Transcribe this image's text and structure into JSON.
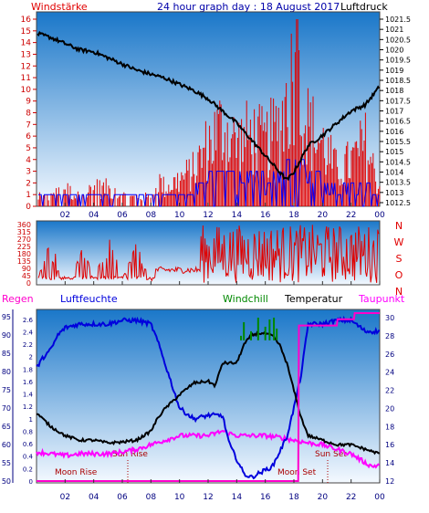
{
  "header": {
    "left": "Windstärke",
    "center": "24 hour graph day : 18 August 2017",
    "right": "Luftdruck"
  },
  "colors": {
    "wind": "#e00000",
    "pressure": "#000000",
    "windAvg": "#0000ff",
    "humidity": "#0000dd",
    "windchill": "#008800",
    "temperature": "#000000",
    "dewpoint": "#ff00ff",
    "rain": "#ff00cc",
    "axisLeft": "#0000aa",
    "axisRight": "#000080",
    "bgTop": "#1a77c9",
    "bgBottom": "#f4f9ff"
  },
  "time_ticks": [
    "02",
    "04",
    "06",
    "08",
    "10",
    "12",
    "14",
    "16",
    "18",
    "20",
    "22",
    "00"
  ],
  "top_panel": {
    "left_ticks": [
      "16",
      "15",
      "14",
      "13",
      "12",
      "11",
      "10",
      "9",
      "8",
      "7",
      "6",
      "5",
      "4",
      "3",
      "2",
      "1",
      "0"
    ],
    "right_ticks": [
      "1021.5",
      "1021",
      "1020.5",
      "1020",
      "1019.5",
      "1019",
      "1018.5",
      "1018",
      "1017.5",
      "1017",
      "1016.5",
      "1016",
      "1015.5",
      "1015",
      "1014.5",
      "1014",
      "1013.5",
      "1013",
      "1012.5"
    ]
  },
  "dir_panel": {
    "left_ticks": [
      "360",
      "315",
      "270",
      "225",
      "180",
      "135",
      "90",
      "45",
      "0"
    ],
    "right_labels": [
      "N",
      "W",
      "S",
      "O",
      "N"
    ]
  },
  "bottom_panel": {
    "labels": {
      "rain": "Regen",
      "humidity": "Luftfeuchte",
      "windchill": "Windchill",
      "temperature": "Temperatur",
      "dewpoint": "Taupunkt"
    },
    "rain_ticks": [
      "2.6",
      "2.4",
      "2.2",
      "2",
      "1.8",
      "1.6",
      "1.4",
      "1.2",
      "1",
      "0.8",
      "0.6",
      "0.4",
      "0.2",
      "0"
    ],
    "humidity_ticks": [
      "95",
      "90",
      "85",
      "80",
      "75",
      "70",
      "65",
      "60",
      "55",
      "50"
    ],
    "temp_ticks": [
      "30",
      "28",
      "26",
      "24",
      "22",
      "20",
      "18",
      "16",
      "14",
      "12"
    ],
    "annotations": {
      "sun_rise": "Sun Rise",
      "sun_set": "Sun Set",
      "moon_rise": "Moon Rise",
      "moon_set": "Moon Set"
    }
  },
  "chart_data": [
    {
      "type": "line",
      "title": "24 hour graph day : 18 August 2017",
      "x_unit": "hour",
      "xlim": [
        0,
        24
      ],
      "series": [
        {
          "name": "Luftdruck",
          "axis": "right",
          "ylim": [
            1012.5,
            1021.5
          ],
          "x": [
            0,
            1,
            2,
            3,
            4,
            5,
            6,
            7,
            8,
            9,
            10,
            11,
            12,
            13,
            14,
            15,
            16,
            17,
            17.5,
            18,
            19,
            20,
            21,
            22,
            23,
            24
          ],
          "y": [
            1020.8,
            1020.6,
            1020.3,
            1020.0,
            1019.9,
            1019.6,
            1019.3,
            1019.0,
            1018.8,
            1018.6,
            1018.3,
            1018.0,
            1017.6,
            1017.0,
            1016.4,
            1015.6,
            1014.8,
            1014.0,
            1013.6,
            1014.0,
            1015.3,
            1015.8,
            1016.4,
            1017.0,
            1017.3,
            1018.2
          ]
        },
        {
          "name": "Windstärke",
          "axis": "left",
          "ylim": [
            0,
            16
          ],
          "x": [
            0,
            1,
            2,
            3,
            4,
            5,
            6,
            7,
            8,
            8.5,
            9,
            10,
            11,
            12,
            13,
            14,
            15,
            16,
            17,
            18,
            19,
            20,
            21,
            22,
            23,
            24
          ],
          "y": [
            1,
            1,
            2,
            1,
            2,
            2,
            1,
            1,
            1,
            3,
            2,
            3,
            4,
            7,
            9,
            7,
            8,
            7,
            9,
            15,
            9,
            7,
            4,
            5,
            7,
            2
          ]
        }
      ]
    },
    {
      "type": "line",
      "title": "",
      "y_unit": "degrees",
      "ylim": [
        0,
        360
      ],
      "series": [
        {
          "name": "",
          "x": [
            0,
            1,
            2,
            3,
            4,
            5,
            6,
            7,
            8,
            9,
            10,
            11,
            12,
            13,
            14,
            15,
            16,
            17,
            18,
            19,
            20,
            21,
            22,
            23,
            24
          ],
          "y": [
            20,
            200,
            20,
            180,
            40,
            250,
            20,
            200,
            20,
            40,
            60,
            90,
            210,
            340,
            200,
            280,
            160,
            300,
            80,
            280,
            120,
            260,
            40,
            320,
            100
          ]
        }
      ]
    },
    {
      "type": "line",
      "title": "",
      "series": [
        {
          "name": "Luftfeuchte",
          "axis": "humidity",
          "ylim": [
            50,
            96
          ],
          "x": [
            0,
            0.5,
            1,
            1.5,
            2,
            3,
            4,
            5,
            6,
            7,
            8,
            8.5,
            9,
            10,
            11,
            12,
            13,
            13.5,
            14,
            14.5,
            15,
            15.5,
            16,
            16.5,
            17,
            17.5,
            18,
            18.5,
            19,
            20,
            21,
            22,
            23,
            24
          ],
          "y": [
            81,
            84,
            86,
            90,
            92,
            93,
            93,
            93,
            94,
            94,
            93,
            88,
            82,
            70,
            67,
            68,
            68,
            60,
            56,
            52,
            51,
            52,
            53,
            54,
            58,
            62,
            70,
            79,
            93,
            93,
            94,
            94,
            91,
            91
          ]
        },
        {
          "name": "Windchill",
          "axis": "temp",
          "ylim": [
            12,
            30.5
          ],
          "x": [
            14.3,
            14.5,
            15,
            15.5,
            16,
            16.3,
            16.6,
            16.8
          ],
          "y": [
            28,
            29.5,
            28.5,
            30,
            29,
            29.8,
            30,
            28.8
          ]
        },
        {
          "name": "Temperatur",
          "axis": "temp",
          "ylim": [
            12,
            30.5
          ],
          "x": [
            0,
            1,
            2,
            3,
            4,
            5,
            6,
            7,
            8,
            8.5,
            9,
            10,
            11,
            12,
            12.5,
            13,
            14,
            14.5,
            15,
            15.5,
            16,
            16.5,
            17,
            17.5,
            18,
            18.5,
            19,
            20,
            21,
            22,
            23,
            24
          ],
          "y": [
            19.5,
            18,
            17,
            16.5,
            16.5,
            16.2,
            16.3,
            16.5,
            17.5,
            19,
            20,
            21.5,
            22.8,
            23,
            22.5,
            25,
            25,
            27,
            28,
            28.3,
            28.2,
            28,
            27,
            25,
            22,
            19,
            17,
            16.5,
            16,
            16,
            15.5,
            15
          ]
        },
        {
          "name": "Taupunkt",
          "axis": "temp",
          "ylim": [
            12,
            30.5
          ],
          "x": [
            0,
            1,
            2,
            3,
            4,
            5,
            6,
            7,
            8,
            9,
            10,
            11,
            12,
            13,
            14,
            15,
            16,
            17,
            18,
            19,
            20,
            21,
            22,
            23,
            23.5,
            24
          ],
          "y": [
            15.2,
            15,
            14.8,
            15,
            15,
            15,
            15.2,
            15.5,
            16,
            16.5,
            17,
            17,
            17,
            17.5,
            17,
            17,
            17,
            16.8,
            16.5,
            16.2,
            16,
            15.5,
            15,
            14,
            13.6,
            13.8
          ]
        },
        {
          "name": "Regen",
          "axis": "rain",
          "ylim": [
            0,
            2.7
          ],
          "x": [
            0,
            18.3,
            18.35,
            21,
            21.05,
            22.2,
            22.25,
            24
          ],
          "y": [
            0,
            0,
            2.5,
            2.5,
            2.6,
            2.6,
            2.7,
            2.7
          ]
        }
      ]
    }
  ]
}
